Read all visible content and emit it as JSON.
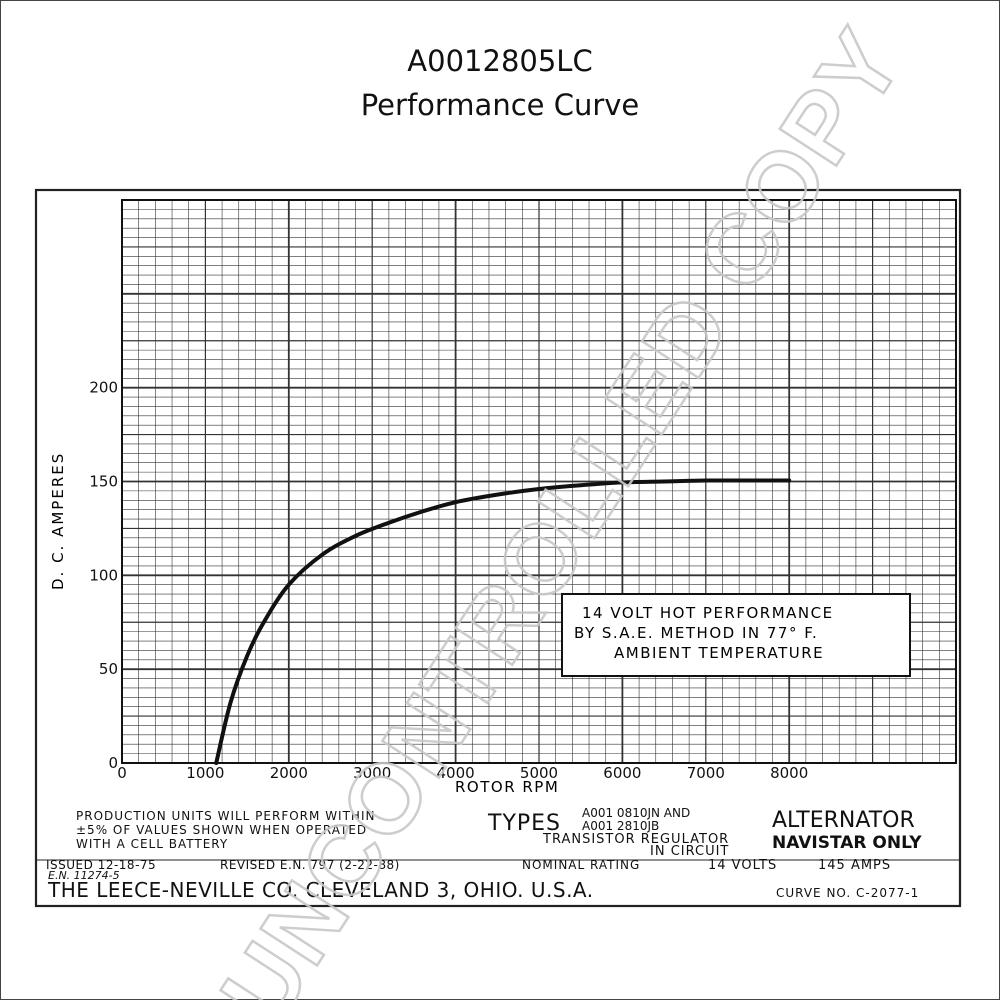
{
  "header": {
    "title": "A0012805LC",
    "subtitle": "Performance Curve"
  },
  "watermark": "UNCONTROLLED COPY",
  "chart_data": {
    "type": "line",
    "xlabel": "ROTOR RPM",
    "ylabel": "D. C. AMPERES",
    "xlim": [
      0,
      10000
    ],
    "ylim": [
      0,
      300
    ],
    "x_ticks": [
      0,
      1000,
      2000,
      3000,
      4000,
      5000,
      6000,
      7000,
      8000
    ],
    "x_tick_labels": [
      "0",
      "1000",
      "2000",
      "3000",
      "4000",
      "5000",
      "6000",
      "7000",
      "8000"
    ],
    "y_ticks": [
      0,
      50,
      100,
      150,
      200
    ],
    "y_tick_labels": [
      "0",
      "50",
      "100",
      "150",
      "200"
    ],
    "grid": true,
    "series": [
      {
        "x": [
          1130,
          1300,
          1500,
          1700,
          2000,
          2400,
          2800,
          3200,
          3600,
          4000,
          4500,
          5000,
          5500,
          6000,
          6500,
          7000,
          7500,
          8000
        ],
        "y": [
          0,
          32,
          57,
          75,
          95,
          111,
          121,
          128,
          134,
          139,
          143,
          146,
          148,
          149.5,
          150,
          150.5,
          150.5,
          150.5
        ]
      }
    ],
    "annotation": {
      "lines": [
        "14 VOLT HOT PERFORMANCE",
        "BY S.A.E. METHOD IN 77° F.",
        "AMBIENT TEMPERATURE"
      ]
    }
  },
  "footer": {
    "production_note": [
      "PRODUCTION UNITS WILL PERFORM WITHIN",
      "±5% OF VALUES SHOWN WHEN OPERATED",
      "WITH A CELL BATTERY"
    ],
    "types_label": "TYPES",
    "types_values": [
      "A001 0810JN AND",
      "A001 2810JB"
    ],
    "regulator_note": [
      "TRANSISTOR REGULATOR",
      "IN CIRCUIT"
    ],
    "product": "ALTERNATOR",
    "product_note": "NAVISTAR ONLY",
    "issued": "ISSUED 12-18-75",
    "en": "E.N. 11274-5",
    "revised": "REVISED E.N. 797 (2-22-88)",
    "nominal_rating": "NOMINAL RATING",
    "volts": "14 VOLTS",
    "amps": "145 AMPS",
    "company": "THE LEECE-NEVILLE CO. CLEVELAND 3, OHIO. U.S.A.",
    "curve_no": "CURVE NO. C-2077-1"
  }
}
